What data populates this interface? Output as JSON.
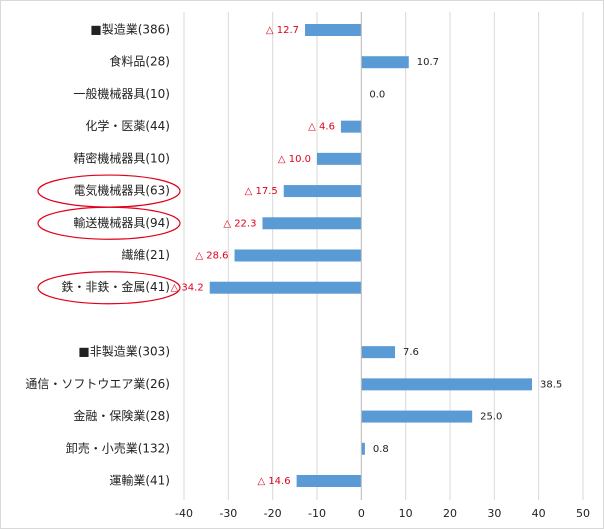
{
  "chart_data": {
    "type": "hbar",
    "categories": [
      "■製造業(386)",
      "食料品(28)",
      "一般機械器具(10)",
      "化学・医薬(44)",
      "精密機械器具(10)",
      "電気機械器具(63)",
      "輸送機械器具(94)",
      "繊維(21)",
      "鉄・非鉄・金属(41)",
      null,
      "■非製造業(303)",
      "通信・ソフトウエア業(26)",
      "金融・保険業(28)",
      "卸売・小売業(132)",
      "運輸業(41)"
    ],
    "values": [
      -12.7,
      10.7,
      0.0,
      -4.6,
      -10.0,
      -17.5,
      -22.3,
      -28.6,
      -34.2,
      null,
      7.6,
      38.5,
      25.0,
      0.8,
      -14.6
    ],
    "value_labels": [
      "△ 12.7",
      "10.7",
      "0.0",
      "△ 4.6",
      "△ 10.0",
      "△ 17.5",
      "△ 22.3",
      "△ 28.6",
      "△ 34.2",
      null,
      "7.6",
      "38.5",
      "25.0",
      "0.8",
      "△ 14.6"
    ],
    "color": "#5b9bd5",
    "negative_label_color": "#e0001b",
    "circled": [
      5,
      6,
      8
    ],
    "circle_color": "#e0001b",
    "xlim": [
      -40,
      50
    ],
    "xticks": [
      -40,
      -30,
      -20,
      -10,
      0,
      10,
      20,
      30,
      40,
      50
    ],
    "grid": true
  }
}
